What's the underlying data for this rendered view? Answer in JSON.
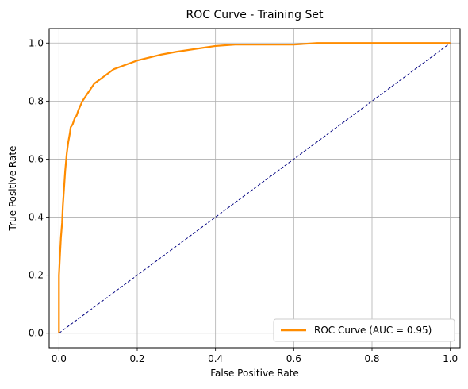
{
  "chart_data": {
    "type": "line",
    "title": "ROC Curve - Training Set",
    "xlabel": "False Positive Rate",
    "ylabel": "True Positive Rate",
    "xlim": [
      -0.025,
      1.025
    ],
    "ylim": [
      -0.05,
      1.05
    ],
    "x_ticks": [
      0.0,
      0.2,
      0.4,
      0.6,
      0.8,
      1.0
    ],
    "x_tick_labels": [
      "0.0",
      "0.2",
      "0.4",
      "0.6",
      "0.8",
      "1.0"
    ],
    "y_ticks": [
      0.0,
      0.2,
      0.4,
      0.6,
      0.8,
      1.0
    ],
    "y_tick_labels": [
      "0.0",
      "0.2",
      "0.4",
      "0.6",
      "0.8",
      "1.0"
    ],
    "grid": true,
    "legend_position": "bottom-right",
    "series": [
      {
        "name": "ROC Curve (AUC = 0.95)",
        "color": "#ff8c00",
        "style": "solid",
        "x": [
          0.0,
          0.0,
          0.003,
          0.005,
          0.008,
          0.01,
          0.013,
          0.016,
          0.02,
          0.024,
          0.028,
          0.03,
          0.035,
          0.04,
          0.045,
          0.05,
          0.06,
          0.07,
          0.08,
          0.09,
          0.1,
          0.12,
          0.14,
          0.16,
          0.18,
          0.2,
          0.23,
          0.26,
          0.3,
          0.35,
          0.4,
          0.45,
          0.5,
          0.6,
          0.66,
          0.7,
          0.8,
          0.9,
          1.0
        ],
        "y": [
          0.0,
          0.2,
          0.28,
          0.33,
          0.38,
          0.44,
          0.5,
          0.56,
          0.62,
          0.66,
          0.69,
          0.71,
          0.72,
          0.74,
          0.75,
          0.77,
          0.8,
          0.82,
          0.84,
          0.86,
          0.87,
          0.89,
          0.91,
          0.92,
          0.93,
          0.94,
          0.95,
          0.96,
          0.97,
          0.98,
          0.99,
          0.995,
          0.995,
          0.995,
          1.0,
          1.0,
          1.0,
          1.0,
          1.0
        ]
      },
      {
        "name": "",
        "color": "#000080",
        "style": "dashed",
        "x": [
          0.0,
          1.0
        ],
        "y": [
          0.0,
          1.0
        ]
      }
    ]
  }
}
